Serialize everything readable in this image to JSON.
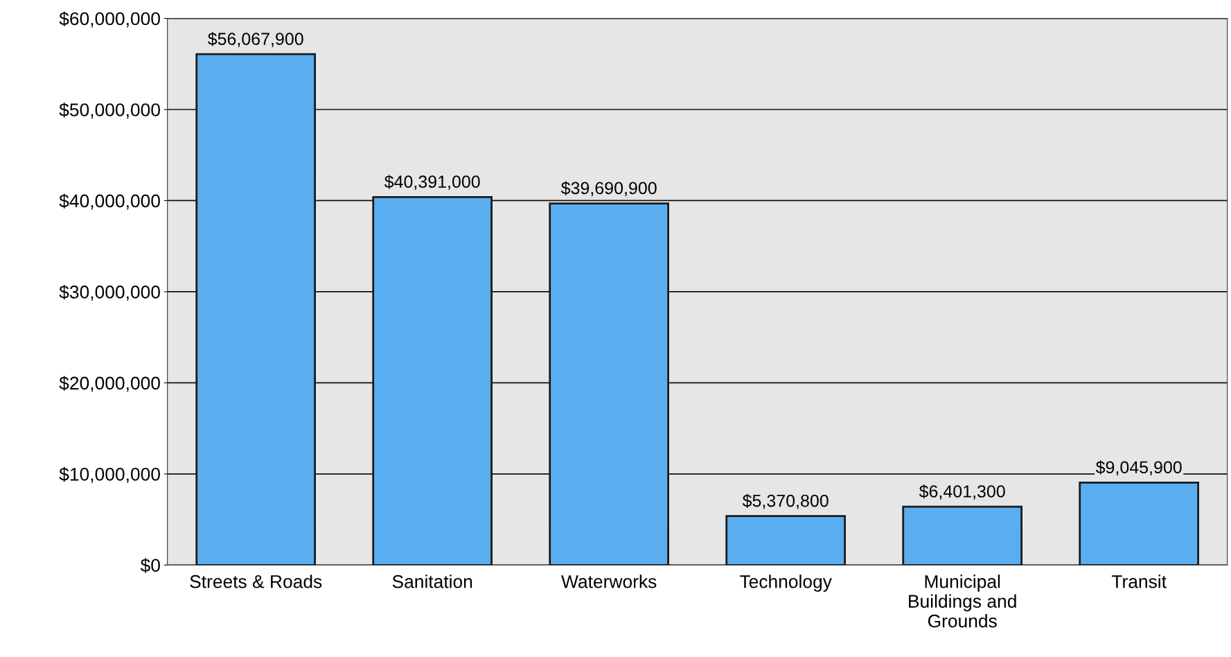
{
  "chart_data": {
    "type": "bar",
    "categories": [
      "Streets & Roads",
      "Sanitation",
      "Waterworks",
      "Technology",
      "Municipal Buildings and Grounds",
      "Transit"
    ],
    "values": [
      56067900,
      40391000,
      39690900,
      5370800,
      6401300,
      9045900
    ],
    "color": "#5aaef0",
    "value_labels": [
      "$56,067,900",
      "$40,391,000",
      "$39,690,900",
      "$5,370,800",
      "$6,401,300",
      "$9,045,900"
    ],
    "ylim": [
      0,
      60000000
    ],
    "yticks": [
      {
        "value": 0,
        "label": "$0"
      },
      {
        "value": 10000000,
        "label": "$10,000,000"
      },
      {
        "value": 20000000,
        "label": "$20,000,000"
      },
      {
        "value": 30000000,
        "label": "$30,000,000"
      },
      {
        "value": 40000000,
        "label": "$40,000,000"
      },
      {
        "value": 50000000,
        "label": "$50,000,000"
      },
      {
        "value": 60000000,
        "label": "$60,000,000"
      }
    ],
    "grid": "y"
  }
}
